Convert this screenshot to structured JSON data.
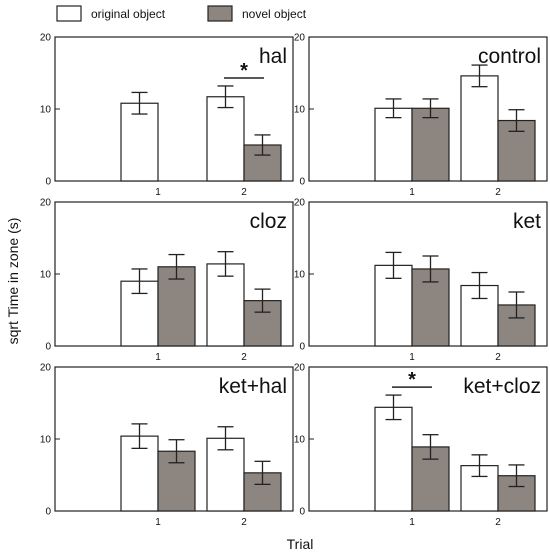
{
  "legend": {
    "items": [
      {
        "label": "original object",
        "color": "#ffffff"
      },
      {
        "label": "novel object",
        "color": "#8c8580"
      }
    ]
  },
  "colors": {
    "original": "#ffffff",
    "novel": "#8c8580",
    "stroke": "#222222"
  },
  "axes": {
    "ylabel": "sqrt Time in zone (s)",
    "xlabel": "Trial"
  },
  "chart_data": [
    {
      "type": "bar",
      "title": "hal",
      "categories": [
        "1",
        "2"
      ],
      "ylim": [
        0,
        20
      ],
      "yticks": [
        0,
        10,
        20
      ],
      "series": [
        {
          "name": "original object",
          "values": [
            10.8,
            11.7
          ],
          "errors": [
            1.5,
            1.5
          ]
        },
        {
          "name": "novel object",
          "values": [
            null,
            5.0
          ],
          "errors": [
            null,
            1.4
          ]
        }
      ],
      "significance": [
        {
          "label": "*",
          "category": "2"
        }
      ]
    },
    {
      "type": "bar",
      "title": "control",
      "categories": [
        "1",
        "2"
      ],
      "ylim": [
        0,
        20
      ],
      "yticks": [
        0,
        10,
        20
      ],
      "series": [
        {
          "name": "original object",
          "values": [
            10.1,
            14.6
          ],
          "errors": [
            1.3,
            1.5
          ]
        },
        {
          "name": "novel object",
          "values": [
            10.1,
            8.4
          ],
          "errors": [
            1.3,
            1.5
          ]
        }
      ],
      "significance": []
    },
    {
      "type": "bar",
      "title": "cloz",
      "categories": [
        "1",
        "2"
      ],
      "ylim": [
        0,
        20
      ],
      "yticks": [
        0,
        10,
        20
      ],
      "series": [
        {
          "name": "original object",
          "values": [
            9.0,
            11.4
          ],
          "errors": [
            1.7,
            1.7
          ]
        },
        {
          "name": "novel object",
          "values": [
            11.0,
            6.3
          ],
          "errors": [
            1.7,
            1.6
          ]
        }
      ],
      "significance": []
    },
    {
      "type": "bar",
      "title": "ket",
      "categories": [
        "1",
        "2"
      ],
      "ylim": [
        0,
        20
      ],
      "yticks": [
        0,
        10,
        20
      ],
      "series": [
        {
          "name": "original object",
          "values": [
            11.2,
            8.4
          ],
          "errors": [
            1.8,
            1.8
          ]
        },
        {
          "name": "novel object",
          "values": [
            10.7,
            5.7
          ],
          "errors": [
            1.8,
            1.8
          ]
        }
      ],
      "significance": []
    },
    {
      "type": "bar",
      "title": "ket+hal",
      "categories": [
        "1",
        "2"
      ],
      "ylim": [
        0,
        20
      ],
      "yticks": [
        0,
        10,
        20
      ],
      "series": [
        {
          "name": "original object",
          "values": [
            10.4,
            10.1
          ],
          "errors": [
            1.7,
            1.6
          ]
        },
        {
          "name": "novel object",
          "values": [
            8.3,
            5.3
          ],
          "errors": [
            1.6,
            1.6
          ]
        }
      ],
      "significance": []
    },
    {
      "type": "bar",
      "title": "ket+cloz",
      "categories": [
        "1",
        "2"
      ],
      "ylim": [
        0,
        20
      ],
      "yticks": [
        0,
        10,
        20
      ],
      "series": [
        {
          "name": "original object",
          "values": [
            14.4,
            6.3
          ],
          "errors": [
            1.7,
            1.5
          ]
        },
        {
          "name": "novel object",
          "values": [
            8.9,
            4.9
          ],
          "errors": [
            1.7,
            1.5
          ]
        }
      ],
      "significance": [
        {
          "label": "*",
          "category": "1"
        }
      ]
    }
  ]
}
